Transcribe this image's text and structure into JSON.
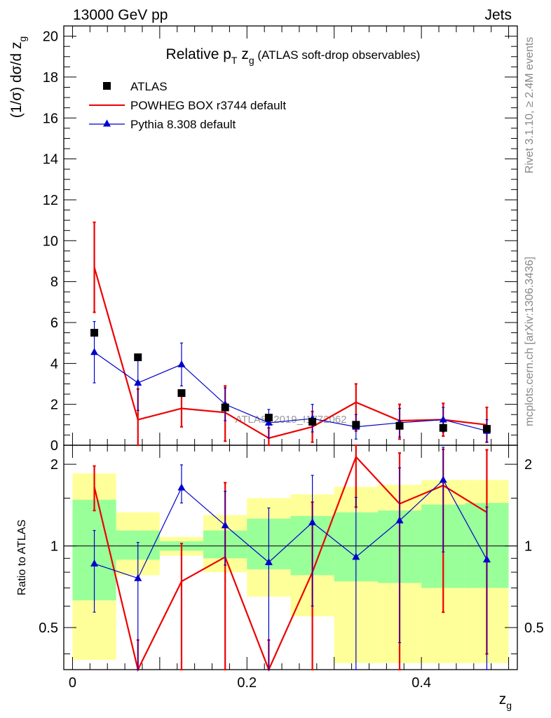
{
  "header": {
    "left": "13000 GeV pp",
    "right": "Jets"
  },
  "side_texts": {
    "rivet": "Rivet 3.1.10, ≥ 2.4M events",
    "mcplots": "mcplots.cern.ch [arXiv:1306.3436]"
  },
  "watermark": "ATLAS_2019_I1772062",
  "main_plot": {
    "title_main": "Relative p",
    "title_sub_T": "T",
    "title_var": " z",
    "title_sub_g": "g",
    "title_rest": " (ATLAS soft-drop observables)",
    "ylabel_main": "(1/σ) dσ/d z",
    "ylabel_sub": "g",
    "ylim": [
      0,
      20.5
    ],
    "yticks": [
      0,
      2,
      4,
      6,
      8,
      10,
      12,
      14,
      16,
      18,
      20
    ]
  },
  "ratio_plot": {
    "ylabel": "Ratio to ATLAS",
    "ylim": [
      0.35,
      2.35
    ],
    "yticks": [
      0.5,
      1,
      2
    ],
    "ytick_labels": [
      "0.5",
      "1",
      "2"
    ]
  },
  "xaxis": {
    "label_main": "z",
    "label_sub": "g",
    "xlim": [
      -0.01,
      0.51
    ],
    "ticks": [
      0,
      0.2,
      0.4
    ],
    "tick_labels": [
      "0",
      "0.2",
      "0.4"
    ]
  },
  "legend": [
    {
      "name": "ATLAS",
      "color": "#000000",
      "marker": "square"
    },
    {
      "name": "POWHEG BOX r3744 default",
      "color": "#ee0000",
      "marker": "line"
    },
    {
      "name": "Pythia 8.308 default",
      "color": "#0000cc",
      "marker": "triangle"
    }
  ],
  "chart_data": {
    "type": "scatter",
    "x": [
      0.025,
      0.075,
      0.125,
      0.175,
      0.225,
      0.275,
      0.325,
      0.375,
      0.425,
      0.475
    ],
    "bin_edges": [
      0,
      0.05,
      0.1,
      0.15,
      0.2,
      0.25,
      0.3,
      0.35,
      0.4,
      0.45,
      0.5
    ],
    "series": [
      {
        "name": "ATLAS",
        "values": [
          5.5,
          4.3,
          2.55,
          1.85,
          1.35,
          1.15,
          1.0,
          0.95,
          0.85,
          0.8
        ]
      },
      {
        "name": "POWHEG BOX r3744 default",
        "values": [
          8.7,
          1.25,
          1.8,
          1.6,
          0.35,
          0.9,
          2.1,
          1.2,
          1.25,
          1.0
        ],
        "err_low": [
          2.2,
          1.5,
          0.9,
          1.4,
          0.5,
          0.75,
          1.4,
          0.9,
          0.8,
          0.85
        ],
        "err_high": [
          2.2,
          1.5,
          0.9,
          1.3,
          0.5,
          0.75,
          0.9,
          0.8,
          0.8,
          0.85
        ]
      },
      {
        "name": "Pythia 8.308 default",
        "values": [
          4.55,
          3.05,
          3.95,
          2.0,
          1.1,
          1.3,
          0.9,
          1.1,
          1.25,
          0.7
        ],
        "err_low": [
          1.5,
          1.35,
          1.05,
          0.8,
          0.75,
          0.65,
          0.6,
          0.7,
          0.6,
          0.55
        ],
        "err_high": [
          1.5,
          1.35,
          1.05,
          0.8,
          0.65,
          0.7,
          0.6,
          0.7,
          0.6,
          0.55
        ]
      }
    ],
    "ratio": {
      "series": [
        {
          "name": "POWHEG BOX r3744 default",
          "values": [
            1.65,
            0.25,
            0.74,
            0.91,
            0.25,
            0.8,
            2.13,
            1.43,
            1.67,
            1.33
          ],
          "err_low": [
            0.3,
            0.2,
            0.7,
            0.9,
            0.2,
            0.6,
            0.74,
            1.1,
            1.1,
            0.93
          ],
          "err_high": [
            0.32,
            0.2,
            0.28,
            0.8,
            0.2,
            0.65,
            0.74,
            0.77,
            0.6,
            0.93
          ]
        },
        {
          "name": "Pythia 8.308 default",
          "values": [
            0.86,
            0.76,
            1.64,
            1.19,
            0.87,
            1.22,
            0.91,
            1.24,
            1.75,
            0.89
          ],
          "err_low": [
            0.29,
            0.55,
            0.2,
            0.34,
            0.58,
            0.62,
            0.6,
            0.8,
            0.8,
            0.65
          ],
          "err_high": [
            0.28,
            0.27,
            0.35,
            0.4,
            0.51,
            0.6,
            0.6,
            0.7,
            0.56,
            0.5
          ]
        }
      ],
      "band_yellow": [
        [
          0.38,
          1.85
        ],
        [
          0.78,
          1.33
        ],
        [
          0.92,
          1.08
        ],
        [
          0.8,
          1.3
        ],
        [
          0.65,
          1.5
        ],
        [
          0.55,
          1.55
        ],
        [
          0.37,
          1.65
        ],
        [
          0.37,
          1.68
        ],
        [
          0.37,
          1.75
        ],
        [
          0.37,
          1.75
        ]
      ],
      "band_green": [
        [
          0.63,
          1.48
        ],
        [
          0.89,
          1.14
        ],
        [
          0.96,
          1.04
        ],
        [
          0.9,
          1.14
        ],
        [
          0.82,
          1.26
        ],
        [
          0.78,
          1.29
        ],
        [
          0.74,
          1.33
        ],
        [
          0.73,
          1.35
        ],
        [
          0.7,
          1.42
        ],
        [
          0.7,
          1.44
        ]
      ]
    }
  }
}
